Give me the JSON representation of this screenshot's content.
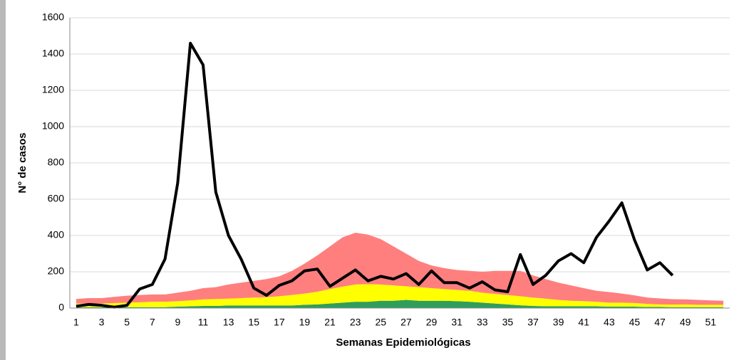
{
  "chart_data": {
    "type": "area-line",
    "x_label": "Semanas Epidemiológicas",
    "y_label": "N° de casos",
    "categories": [
      "1",
      null,
      "3",
      null,
      "5",
      null,
      "7",
      null,
      "9",
      null,
      "11",
      null,
      "13",
      null,
      "15",
      null,
      "17",
      null,
      "19",
      null,
      "21",
      null,
      "23",
      null,
      "25",
      null,
      "27",
      null,
      "29",
      null,
      "31",
      null,
      "33",
      null,
      "35",
      null,
      "37",
      null,
      "39",
      null,
      "41",
      null,
      "43",
      null,
      "45",
      null,
      "47",
      null,
      "49",
      null,
      "51",
      null
    ],
    "ylim": [
      0,
      1600
    ],
    "yticks": [
      0,
      200,
      400,
      600,
      800,
      1000,
      1200,
      1400,
      1600
    ],
    "grid": true,
    "series": [
      {
        "kind": "area",
        "color": "#2e9e5b",
        "values": [
          5,
          5,
          5,
          5,
          5,
          5,
          5,
          5,
          8,
          10,
          12,
          12,
          14,
          14,
          14,
          14,
          14,
          14,
          18,
          20,
          25,
          30,
          35,
          35,
          40,
          40,
          45,
          40,
          40,
          40,
          38,
          35,
          30,
          25,
          20,
          15,
          12,
          10,
          10,
          10,
          10,
          10,
          8,
          8,
          8,
          6,
          6,
          5,
          5,
          5,
          5,
          5
        ]
      },
      {
        "kind": "area",
        "color": "#ffff00",
        "values": [
          20,
          20,
          20,
          23,
          25,
          27,
          30,
          30,
          30,
          32,
          36,
          38,
          38,
          41,
          44,
          46,
          51,
          58,
          62,
          70,
          80,
          88,
          95,
          97,
          90,
          85,
          75,
          75,
          70,
          65,
          62,
          60,
          55,
          53,
          52,
          50,
          46,
          42,
          35,
          30,
          28,
          25,
          22,
          22,
          20,
          17,
          14,
          14,
          15,
          13,
          13,
          13
        ]
      },
      {
        "kind": "area",
        "color": "#ff7f7f",
        "values": [
          25,
          30,
          30,
          34,
          38,
          40,
          40,
          40,
          47,
          53,
          62,
          65,
          78,
          85,
          92,
          100,
          110,
          133,
          165,
          200,
          235,
          272,
          285,
          273,
          250,
          215,
          180,
          145,
          125,
          115,
          110,
          110,
          115,
          127,
          133,
          140,
          122,
          108,
          95,
          85,
          72,
          60,
          58,
          50,
          42,
          35,
          33,
          30,
          28,
          27,
          24,
          22
        ]
      },
      {
        "kind": "line",
        "color": "#000000",
        "values": [
          10,
          20,
          15,
          5,
          15,
          105,
          130,
          270,
          690,
          1460,
          1340,
          640,
          400,
          270,
          110,
          70,
          125,
          150,
          205,
          215,
          120,
          165,
          210,
          150,
          175,
          160,
          190,
          130,
          205,
          140,
          140,
          110,
          145,
          100,
          90,
          295,
          130,
          180,
          260,
          300,
          250,
          390,
          480,
          580,
          375,
          210,
          250,
          180,
          null,
          null,
          null,
          null
        ]
      }
    ]
  }
}
